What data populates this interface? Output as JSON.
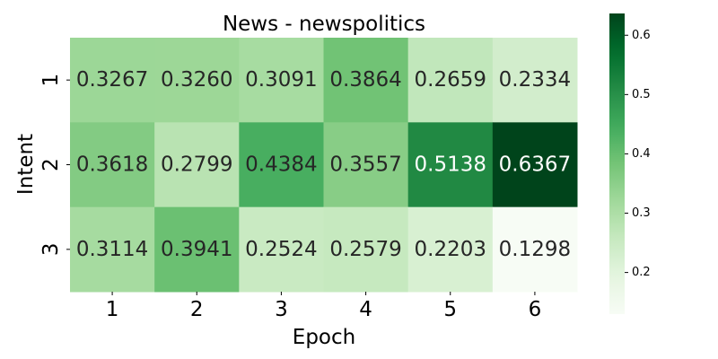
{
  "chart_data": {
    "type": "heatmap",
    "title": "News - newspolitics",
    "xlabel": "Epoch",
    "ylabel": "Intent",
    "x_categories": [
      "1",
      "2",
      "3",
      "4",
      "5",
      "6"
    ],
    "y_categories": [
      "1",
      "2",
      "3"
    ],
    "values": [
      [
        0.3267,
        0.326,
        0.3091,
        0.3864,
        0.2659,
        0.2334
      ],
      [
        0.3618,
        0.2799,
        0.4384,
        0.3557,
        0.5138,
        0.6367
      ],
      [
        0.3114,
        0.3941,
        0.2524,
        0.2579,
        0.2203,
        0.1298
      ]
    ],
    "value_labels": [
      [
        "0.3267",
        "0.3260",
        "0.3091",
        "0.3864",
        "0.2659",
        "0.2334"
      ],
      [
        "0.3618",
        "0.2799",
        "0.4384",
        "0.3557",
        "0.5138",
        "0.6367"
      ],
      [
        "0.3114",
        "0.3941",
        "0.2524",
        "0.2579",
        "0.2203",
        "0.1298"
      ]
    ],
    "colormap": "Greens",
    "vmin": 0.1298,
    "vmax": 0.6367,
    "colorbar_ticks": [
      0.2,
      0.3,
      0.4,
      0.5,
      0.6
    ],
    "colorbar_tick_labels": [
      "0.2",
      "0.3",
      "0.4",
      "0.5",
      "0.6"
    ],
    "colorbar_position": "right",
    "grid": false
  }
}
